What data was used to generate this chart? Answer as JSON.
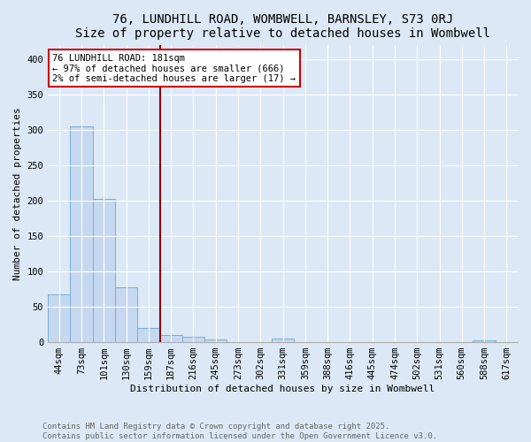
{
  "title": "76, LUNDHILL ROAD, WOMBWELL, BARNSLEY, S73 0RJ",
  "subtitle": "Size of property relative to detached houses in Wombwell",
  "xlabel": "Distribution of detached houses by size in Wombwell",
  "ylabel": "Number of detached properties",
  "categories": [
    "44sqm",
    "73sqm",
    "101sqm",
    "130sqm",
    "159sqm",
    "187sqm",
    "216sqm",
    "245sqm",
    "273sqm",
    "302sqm",
    "331sqm",
    "359sqm",
    "388sqm",
    "416sqm",
    "445sqm",
    "474sqm",
    "502sqm",
    "531sqm",
    "560sqm",
    "588sqm",
    "617sqm"
  ],
  "values": [
    68,
    305,
    202,
    78,
    20,
    10,
    7,
    4,
    0,
    0,
    5,
    0,
    0,
    0,
    0,
    0,
    0,
    0,
    0,
    2,
    0
  ],
  "bar_color": "#c5d8f0",
  "bar_edge_color": "#7aadd4",
  "property_line_index": 5,
  "property_line_color": "#8b0000",
  "annotation_text": "76 LUNDHILL ROAD: 181sqm\n← 97% of detached houses are smaller (666)\n2% of semi-detached houses are larger (17) →",
  "annotation_box_color": "#ffffff",
  "annotation_box_edge_color": "#cc0000",
  "ylim": [
    0,
    420
  ],
  "yticks": [
    0,
    50,
    100,
    150,
    200,
    250,
    300,
    350,
    400
  ],
  "background_color": "#dce8f5",
  "plot_bg_color": "#dce8f5",
  "grid_color": "#ffffff",
  "footnote": "Contains HM Land Registry data © Crown copyright and database right 2025.\nContains public sector information licensed under the Open Government Licence v3.0.",
  "title_fontsize": 10,
  "label_fontsize": 8,
  "tick_fontsize": 7.5,
  "annotation_fontsize": 7.5,
  "footnote_fontsize": 6.5
}
